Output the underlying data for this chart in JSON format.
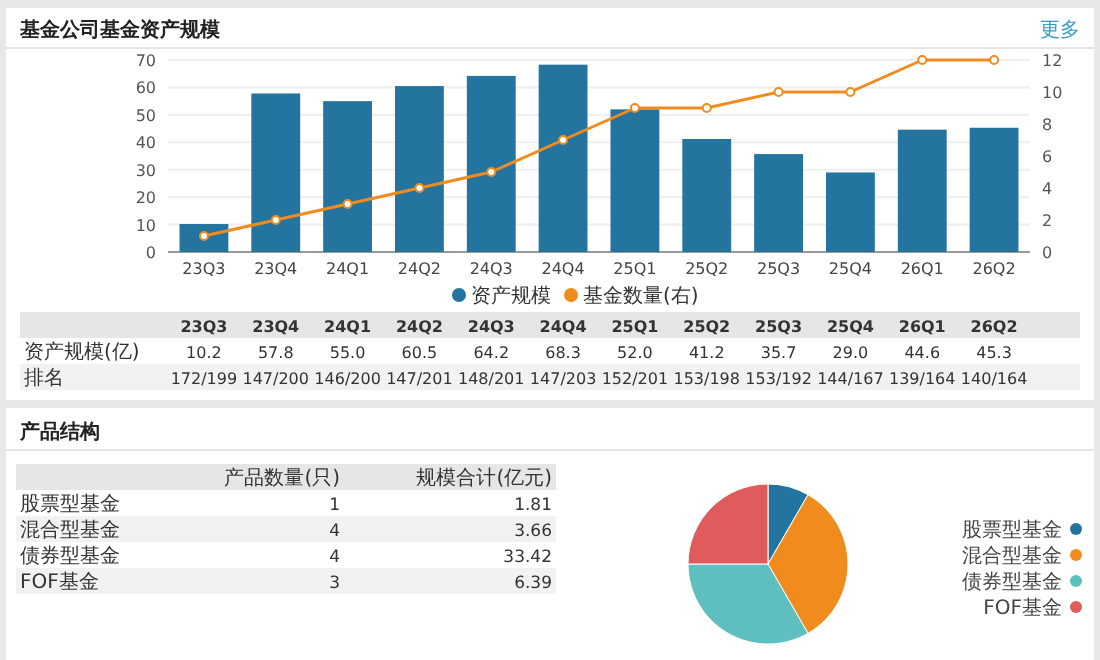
{
  "chart_data": [
    {
      "type": "bar",
      "title": "基金公司基金资产规模",
      "categories": [
        "23Q3",
        "23Q4",
        "24Q1",
        "24Q2",
        "24Q3",
        "24Q4",
        "25Q1",
        "25Q2",
        "25Q3",
        "25Q4",
        "26Q1",
        "26Q2"
      ],
      "series": [
        {
          "name": "资产规模",
          "color": "#2474a0",
          "values": [
            10.2,
            57.8,
            55.0,
            60.5,
            64.2,
            68.3,
            52.0,
            41.2,
            35.7,
            29.0,
            44.6,
            45.3
          ],
          "value_labels": [
            "10.2",
            "57.8",
            "55.0",
            "60.5",
            "64.2",
            "68.3",
            "52.0",
            "41.2",
            "35.7",
            "29.0",
            "44.6",
            "45.3"
          ]
        },
        {
          "name": "基金数量(右)",
          "type": "line",
          "axis": "y2",
          "color": "#f28b1e",
          "marker": "circle",
          "values": [
            1,
            2,
            3,
            4,
            5,
            7,
            9,
            9,
            10,
            10,
            12,
            12
          ]
        }
      ],
      "ylim": [
        0,
        70
      ],
      "yticks": [
        0,
        10,
        20,
        30,
        40,
        50,
        60,
        70
      ],
      "y2lim": [
        0,
        12
      ],
      "y2ticks": [
        0,
        2,
        4,
        6,
        8,
        10,
        12
      ],
      "grid": "y",
      "legend": "bottom",
      "annotations": [
        "更多",
        "资产规模(亿)",
        "排名",
        "172/199",
        "147/200",
        "146/200",
        "147/201",
        "148/201",
        "147/203",
        "152/201",
        "153/198",
        "153/192",
        "144/167",
        "139/164",
        "140/164"
      ]
    },
    {
      "type": "other",
      "title": "产品结构",
      "annotations": [
        "产品数量(只)",
        "规模合计(亿元)",
        "股票型基金",
        "1",
        "1.81",
        "混合型基金",
        "4",
        "3.66",
        "债券型基金",
        "4",
        "33.42",
        "FOF基金",
        "3",
        "6.39"
      ]
    },
    {
      "type": "pie",
      "categories": [
        "股票型基金",
        "混合型基金",
        "债券型基金",
        "FOF基金"
      ],
      "values": [
        8.34,
        33.33,
        33.33,
        25
      ],
      "colors": [
        "#2474a0",
        "#f28b1e",
        "#5fbfbf",
        "#e05c5c"
      ],
      "legend": "right"
    }
  ]
}
